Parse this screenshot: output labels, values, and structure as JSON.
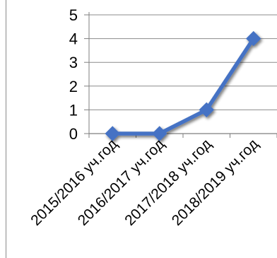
{
  "chart_data": {
    "type": "line",
    "categories": [
      "2015/2016 уч.год",
      "2016/2017 уч.год",
      "2017/2018 уч.год",
      "2018/2019 уч.год"
    ],
    "series": [
      {
        "values": [
          0,
          0,
          1,
          4
        ],
        "color": "#4472C4",
        "marker": "diamond"
      }
    ],
    "yticks": [
      "0",
      "1",
      "2",
      "3",
      "4",
      "5"
    ],
    "ylim": [
      0,
      5
    ],
    "grid": true,
    "legend": "none"
  }
}
